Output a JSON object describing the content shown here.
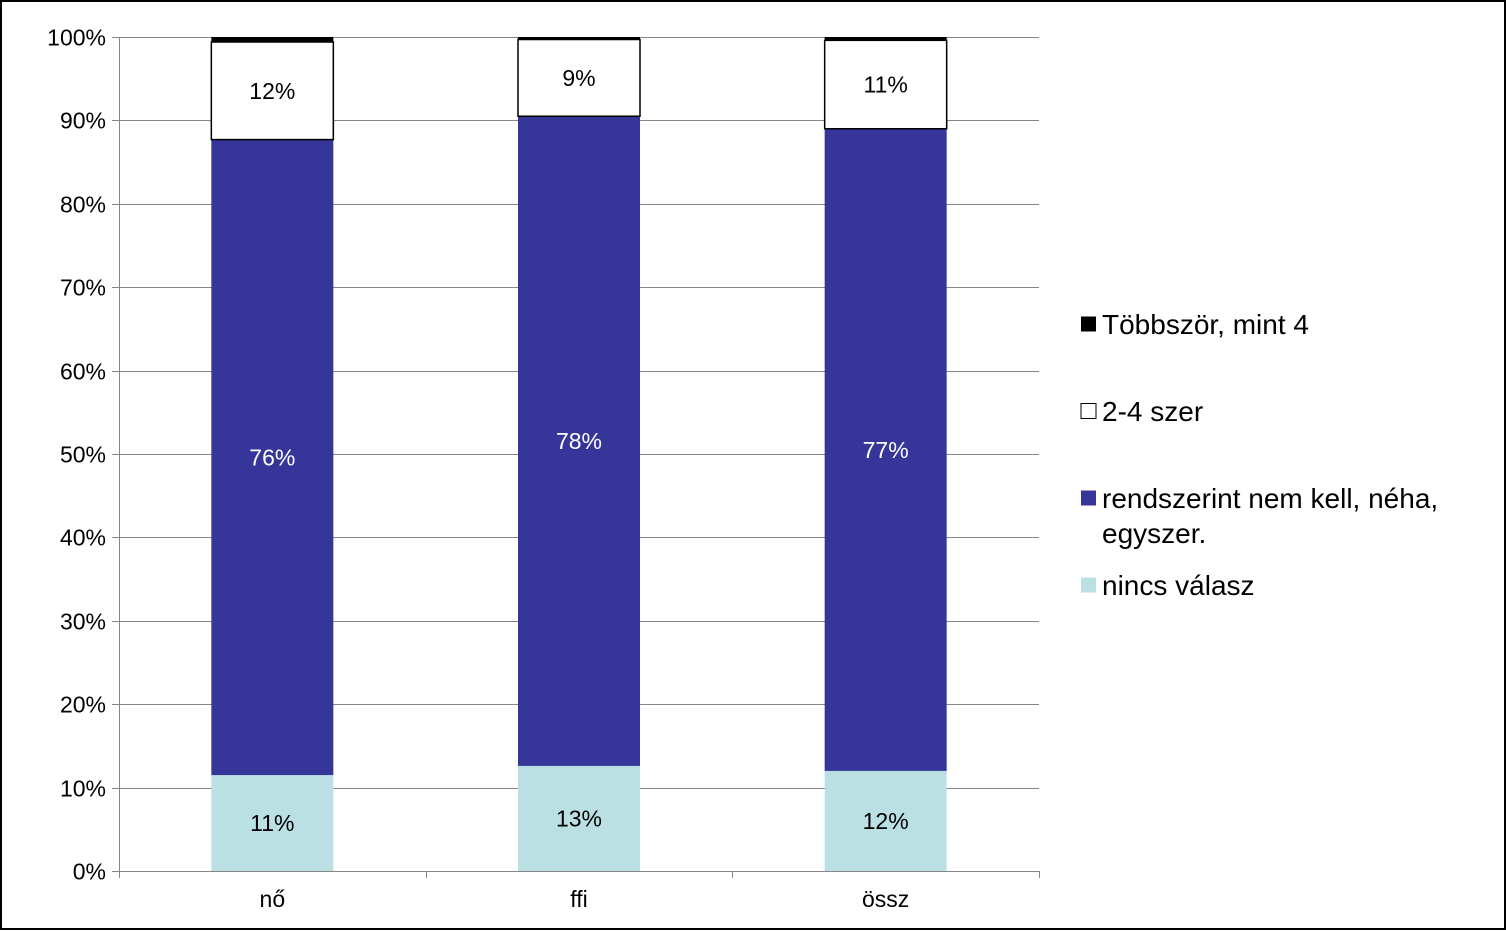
{
  "chart_data": {
    "type": "bar",
    "stacked": true,
    "normalized": true,
    "categories": [
      "nő",
      "ffi",
      "össz"
    ],
    "series": [
      {
        "name": "nincs válasz",
        "color": "#BBE0E3",
        "values": [
          11.5,
          12.6,
          12.0
        ],
        "labels": [
          "11%",
          "13%",
          "12%"
        ],
        "label_color": "#000000"
      },
      {
        "name": "rendszerint nem kell, néha, egyszer.",
        "color": "#35359A",
        "values": [
          76.2,
          77.9,
          77.0
        ],
        "labels": [
          "76%",
          "78%",
          "77%"
        ],
        "label_color": "#FFFFFF"
      },
      {
        "name": "2-4 szer",
        "color": "#FFFFFF",
        "values": [
          11.7,
          9.2,
          10.6
        ],
        "labels": [
          "12%",
          "9%",
          "11%"
        ],
        "label_color": "#000000"
      },
      {
        "name": "Többször, mint 4",
        "color": "#000000",
        "values": [
          0.6,
          0.3,
          0.4
        ],
        "labels": [
          "",
          "",
          ""
        ],
        "label_color": "#FFFFFF"
      }
    ],
    "y_ticks": [
      "0%",
      "10%",
      "20%",
      "30%",
      "40%",
      "50%",
      "60%",
      "70%",
      "80%",
      "90%",
      "100%"
    ],
    "ylim": [
      0,
      100
    ],
    "grid": true,
    "gridline_color": "#868686",
    "legend_position": "right",
    "legend_order": [
      "Többször, mint 4",
      "2-4 szer",
      "rendszerint nem kell, néha, egyszer.",
      "nincs válasz"
    ],
    "legend_lines": {
      "rendszerint nem kell, néha, egyszer.": [
        "rendszerint nem kell, néha,",
        "egyszer."
      ]
    }
  }
}
